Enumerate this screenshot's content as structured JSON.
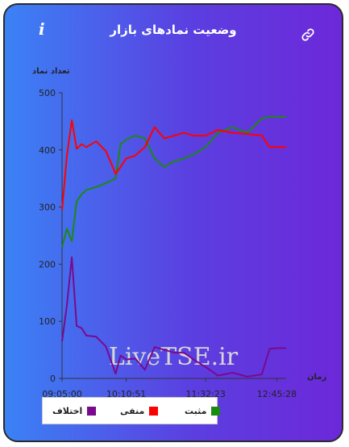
{
  "header": {
    "title": "وضعیت نمادهای بازار",
    "info_icon": "info-icon",
    "link_icon": "link-icon"
  },
  "chart_data": {
    "type": "line",
    "ylabel": "تعداد نماد",
    "xlabel": "زمان",
    "ylim": [
      0,
      500
    ],
    "yticks": [
      0,
      100,
      200,
      300,
      400,
      500
    ],
    "xticks": [
      "09:05:00",
      "10:10:51",
      "11:32:23",
      "12:45:28"
    ],
    "watermark": "LiveTSE.ir",
    "x": [
      "09:05:00",
      "09:10:00",
      "09:15:00",
      "09:20:00",
      "09:25:00",
      "09:30:00",
      "09:40:00",
      "09:50:00",
      "10:00:00",
      "10:05:00",
      "10:10:51",
      "10:20:00",
      "10:30:00",
      "10:40:00",
      "10:50:00",
      "11:00:00",
      "11:10:00",
      "11:20:00",
      "11:32:23",
      "11:45:00",
      "12:00:00",
      "12:15:00",
      "12:30:00",
      "12:38:00",
      "12:45:28",
      "12:55:00"
    ],
    "series": [
      {
        "name": "مثبت",
        "color": "#1a8a12",
        "values": [
          230,
          262,
          240,
          310,
          322,
          330,
          335,
          342,
          350,
          410,
          418,
          425,
          420,
          385,
          370,
          380,
          385,
          392,
          405,
          430,
          440,
          430,
          455,
          458,
          458,
          458
        ]
      },
      {
        "name": "منفی",
        "color": "#ff0000",
        "values": [
          295,
          390,
          452,
          402,
          410,
          405,
          415,
          398,
          358,
          370,
          385,
          390,
          405,
          440,
          420,
          425,
          430,
          425,
          425,
          435,
          430,
          428,
          425,
          405,
          405,
          405
        ]
      },
      {
        "name": "اختلاف",
        "color": "#7a0a8c",
        "values": [
          65,
          128,
          212,
          92,
          88,
          75,
          73,
          56,
          8,
          40,
          33,
          35,
          15,
          55,
          50,
          45,
          45,
          33,
          20,
          5,
          10,
          3,
          7,
          52,
          53,
          53
        ]
      }
    ],
    "legend": [
      "مثبت",
      "منفی",
      "اختلاف"
    ],
    "legend_position": "bottom-left"
  }
}
